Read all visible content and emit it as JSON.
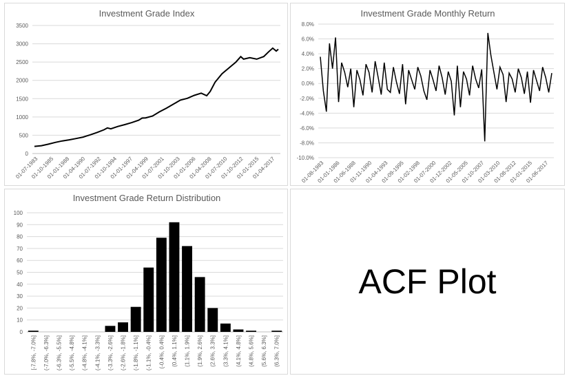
{
  "chart_data": [
    {
      "id": "index",
      "type": "line",
      "title": "Investment Grade Index",
      "ylim": [
        0,
        3500
      ],
      "yticks": [
        "0",
        "500",
        "1000",
        "1500",
        "2000",
        "2500",
        "3000",
        "3500"
      ],
      "xticks": [
        "01-07-1983",
        "01-10-1985",
        "01-01-1988",
        "01-04-1990",
        "01-07-1992",
        "01-10-1994",
        "01-01-1997",
        "01-04-1999",
        "01-07-2001",
        "01-10-2003",
        "01-01-2006",
        "01-04-2008",
        "01-07-2010",
        "01-10-2012",
        "01-01-2015",
        "01-04-2017"
      ],
      "x": [
        1983.5,
        1984.5,
        1985.5,
        1986.5,
        1987.5,
        1988.5,
        1989.5,
        1990.5,
        1991.5,
        1992.5,
        1993.5,
        1994.0,
        1994.5,
        1995.5,
        1996.5,
        1997.5,
        1998.5,
        1999.0,
        1999.5,
        2000.5,
        2001.5,
        2002.5,
        2003.5,
        2004.5,
        2005.5,
        2006.5,
        2007.5,
        2008.3,
        2008.8,
        2009.5,
        2010.5,
        2011.5,
        2012.5,
        2013.2,
        2013.6,
        2014.5,
        2015.5,
        2016.5,
        2017.2,
        2017.8,
        2018.3,
        2018.6
      ],
      "values": [
        195,
        215,
        255,
        305,
        345,
        375,
        410,
        450,
        510,
        575,
        650,
        700,
        675,
        740,
        790,
        845,
        910,
        970,
        975,
        1025,
        1140,
        1240,
        1350,
        1460,
        1510,
        1590,
        1650,
        1580,
        1700,
        1950,
        2180,
        2340,
        2500,
        2650,
        2580,
        2620,
        2580,
        2650,
        2780,
        2880,
        2800,
        2850
      ],
      "color": "#000000"
    },
    {
      "id": "monthly",
      "type": "line",
      "title": "Investment Grade Monthly Return",
      "ylim": [
        -10,
        8
      ],
      "yticks": [
        "-10.0%",
        "-8.0%",
        "-6.0%",
        "-4.0%",
        "-2.0%",
        "0.0%",
        "2.0%",
        "4.0%",
        "6.0%",
        "8.0%"
      ],
      "xticks": [
        "01-08-1983",
        "01-01-1986",
        "01-06-1988",
        "01-11-1990",
        "01-04-1993",
        "01-09-1995",
        "01-02-1998",
        "01-07-2000",
        "01-12-2002",
        "01-05-2005",
        "01-10-2007",
        "01-03-2010",
        "01-08-2012",
        "01-01-2015",
        "01-06-2017"
      ],
      "x_start": 1983.58,
      "x_step": 0.25,
      "values": [
        3.6,
        -1.0,
        -3.8,
        5.4,
        2.0,
        6.2,
        -2.5,
        2.8,
        1.5,
        -0.5,
        2.0,
        -3.2,
        1.8,
        0.5,
        -1.6,
        2.6,
        1.5,
        -1.2,
        3.0,
        0.8,
        -1.5,
        2.8,
        -0.8,
        -1.2,
        2.2,
        0.2,
        -1.4,
        2.6,
        -2.8,
        1.8,
        0.5,
        -0.8,
        2.2,
        1.0,
        -1.0,
        -2.2,
        1.8,
        0.5,
        -1.0,
        2.4,
        0.8,
        -1.5,
        1.6,
        0.3,
        -4.3,
        2.4,
        -3.2,
        1.6,
        0.6,
        -1.6,
        2.4,
        0.6,
        -0.6,
        1.9,
        -7.8,
        6.8,
        3.8,
        1.5,
        -0.8,
        2.2,
        1.2,
        -2.5,
        1.4,
        0.6,
        -1.2,
        2.0,
        0.8,
        -1.4,
        1.6,
        -2.6,
        1.8,
        0.4,
        -1.0,
        2.2,
        0.8,
        -1.2,
        1.4
      ],
      "color": "#000000"
    },
    {
      "id": "distribution",
      "type": "bar",
      "title": "Investment Grade Return Distribution",
      "ylim": [
        0,
        100
      ],
      "yticks": [
        "0",
        "10",
        "20",
        "30",
        "40",
        "50",
        "60",
        "70",
        "80",
        "90",
        "100"
      ],
      "categories": [
        "[-7.8%, -7.0%]",
        "(-7.0%, -6.3%]",
        "(-6.3%, -5.5%]",
        "(-5.5%, -4.8%]",
        "(-4.8%, -4.1%]",
        "(-4.1%, -3.3%]",
        "(-3.3%, -2.6%]",
        "(-2.6%, -1.8%]",
        "(-1.8%, -1.1%]",
        "(-1.1%, -0.4%]",
        "(-0.4%, 0.4%]",
        "(0.4%, 1.1%]",
        "(1.1%, 1.9%]",
        "(1.9%, 2.6%]",
        "(2.6%, 3.3%]",
        "(3.3%, 4.1%]",
        "(4.1%, 4.8%]",
        "(4.8%, 5.6%]",
        "(5.6%, 6.3%]",
        "(6.3%, 7.0%]"
      ],
      "values": [
        1,
        0,
        0,
        0,
        0,
        0,
        5,
        8,
        21,
        54,
        79,
        92,
        72,
        46,
        20,
        7,
        2,
        1,
        0,
        1
      ],
      "color": "#000000"
    }
  ],
  "placeholder_panel": {
    "label": "ACF Plot"
  }
}
